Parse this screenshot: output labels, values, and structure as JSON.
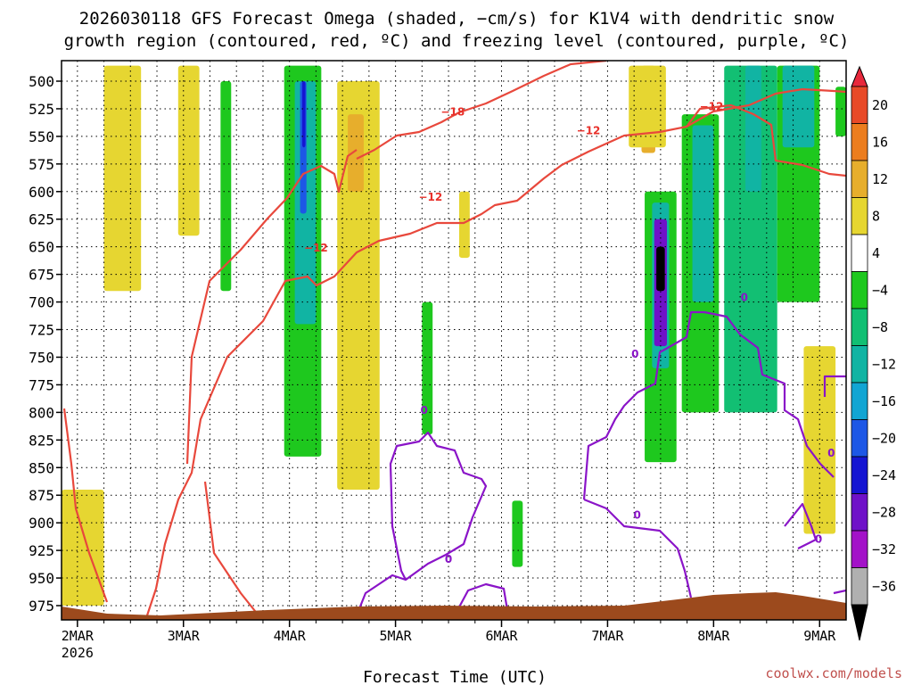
{
  "chart_data": {
    "type": "heatmap",
    "title_line1": "2026030118 GFS Forecast Omega (shaded, −cm/s) for K1V4 with dendritic snow",
    "title_line2": "growth region (contoured, red, ºC) and freezing level (contoured, purple, ºC)",
    "xlabel": "Forecast Time (UTC)",
    "credit": "coolwx.com/models",
    "x_ticks": [
      {
        "label": "2MAR",
        "sublabel": "2026",
        "day": 2
      },
      {
        "label": "3MAR",
        "day": 3
      },
      {
        "label": "4MAR",
        "day": 4
      },
      {
        "label": "5MAR",
        "day": 5
      },
      {
        "label": "6MAR",
        "day": 6
      },
      {
        "label": "7MAR",
        "day": 7
      },
      {
        "label": "8MAR",
        "day": 8
      },
      {
        "label": "9MAR",
        "day": 9
      }
    ],
    "xlim_days": [
      1.85,
      9.25
    ],
    "ylabel_unit": "hPa",
    "y_ticks": [
      "500",
      "525",
      "550",
      "575",
      "600",
      "625",
      "650",
      "675",
      "700",
      "725",
      "750",
      "775",
      "800",
      "825",
      "850",
      "875",
      "900",
      "925",
      "950",
      "975"
    ],
    "ylim_hpa": [
      484,
      990
    ],
    "colorbar": {
      "ticks": [
        "20",
        "16",
        "12",
        "8",
        "4",
        "−4",
        "−8",
        "−12",
        "−16",
        "−20",
        "−24",
        "−28",
        "−32",
        "−36"
      ],
      "colors": [
        "#e8283c",
        "#e84a28",
        "#ec7d1e",
        "#e7ae2c",
        "#e6d631",
        "#ffffff",
        "#1ec81e",
        "#12bf73",
        "#11b4a3",
        "#12a5d3",
        "#1d57e6",
        "#1515d2",
        "#6f12c8",
        "#a312c8",
        "#b0b0b0",
        "#000000"
      ]
    },
    "contours": {
      "dgz_red": {
        "color": "#e8483c",
        "levels": [
          "−12",
          "−18"
        ]
      },
      "freezing_purple": {
        "color": "#8a14c8",
        "levels": [
          "0"
        ]
      }
    },
    "contour_labels": [
      {
        "text": "−18",
        "day": 5.54,
        "hpa": 528,
        "kind": "red"
      },
      {
        "text": "−12",
        "day": 6.82,
        "hpa": 545,
        "kind": "red"
      },
      {
        "text": "−12",
        "day": 7.98,
        "hpa": 523,
        "kind": "red"
      },
      {
        "text": "−12",
        "day": 5.33,
        "hpa": 605,
        "kind": "red"
      },
      {
        "text": "−12",
        "day": 4.25,
        "hpa": 651,
        "kind": "red"
      },
      {
        "text": "0",
        "day": 5.27,
        "hpa": 798,
        "kind": "purple"
      },
      {
        "text": "0",
        "day": 5.5,
        "hpa": 933,
        "kind": "purple"
      },
      {
        "text": "0",
        "day": 7.26,
        "hpa": 747,
        "kind": "purple"
      },
      {
        "text": "0",
        "day": 7.28,
        "hpa": 893,
        "kind": "purple"
      },
      {
        "text": "0",
        "day": 8.29,
        "hpa": 696,
        "kind": "purple"
      },
      {
        "text": "0",
        "day": 9.11,
        "hpa": 837,
        "kind": "purple"
      },
      {
        "text": "0",
        "day": 8.99,
        "hpa": 915,
        "kind": "purple"
      }
    ],
    "omega_regions": [
      {
        "name": "yellow-band-2mar",
        "value": 5,
        "day0": 2.25,
        "day1": 2.6,
        "hpa0": 486,
        "hpa1": 690
      },
      {
        "name": "yellow-band-2mar-b",
        "value": 5,
        "day0": 2.95,
        "day1": 3.15,
        "hpa0": 486,
        "hpa1": 640
      },
      {
        "name": "yellow-lowlevel-2mar",
        "value": 6,
        "day0": 1.85,
        "day1": 2.25,
        "hpa0": 870,
        "hpa1": 975
      },
      {
        "name": "green-3mar",
        "value": -6,
        "day0": 3.35,
        "day1": 3.45,
        "hpa0": 500,
        "hpa1": 690
      },
      {
        "name": "green-4mar",
        "value": -8,
        "day0": 3.95,
        "day1": 4.3,
        "hpa0": 486,
        "hpa1": 840
      },
      {
        "name": "cyan-4mar",
        "value": -13,
        "day0": 4.05,
        "day1": 4.25,
        "hpa0": 500,
        "hpa1": 720
      },
      {
        "name": "blue-4mar",
        "value": -22,
        "day0": 4.1,
        "day1": 4.16,
        "hpa0": 500,
        "hpa1": 620
      },
      {
        "name": "purple-4mar",
        "value": -27,
        "day0": 4.12,
        "day1": 4.15,
        "hpa0": 500,
        "hpa1": 560
      },
      {
        "name": "yellow-4mar",
        "value": 5,
        "day0": 4.45,
        "day1": 4.85,
        "hpa0": 500,
        "hpa1": 870
      },
      {
        "name": "orange-4mar",
        "value": 9,
        "day0": 4.55,
        "day1": 4.7,
        "hpa0": 530,
        "hpa1": 600
      },
      {
        "name": "green-5mar",
        "value": -6,
        "day0": 5.25,
        "day1": 5.35,
        "hpa0": 700,
        "hpa1": 820
      },
      {
        "name": "yellow-5mar",
        "value": 5,
        "day0": 5.6,
        "day1": 5.7,
        "hpa0": 600,
        "hpa1": 660
      },
      {
        "name": "green-6mar",
        "value": -6,
        "day0": 6.1,
        "day1": 6.2,
        "hpa0": 880,
        "hpa1": 940
      },
      {
        "name": "orange-7mar",
        "value": 10,
        "day0": 7.32,
        "day1": 7.45,
        "hpa0": 486,
        "hpa1": 565
      },
      {
        "name": "yellow-7mar",
        "value": 5,
        "day0": 7.2,
        "day1": 7.55,
        "hpa0": 486,
        "hpa1": 560
      },
      {
        "name": "green-7mar",
        "value": -8,
        "day0": 7.35,
        "day1": 7.65,
        "hpa0": 600,
        "hpa1": 845
      },
      {
        "name": "cyan-7mar",
        "value": -14,
        "day0": 7.42,
        "day1": 7.58,
        "hpa0": 610,
        "hpa1": 760
      },
      {
        "name": "purple-7mar",
        "value": -29,
        "day0": 7.44,
        "day1": 7.56,
        "hpa0": 625,
        "hpa1": 740
      },
      {
        "name": "black-7mar",
        "value": -38,
        "day0": 7.46,
        "day1": 7.54,
        "hpa0": 650,
        "hpa1": 690
      },
      {
        "name": "green-8mar",
        "value": -8,
        "day0": 7.7,
        "day1": 8.05,
        "hpa0": 530,
        "hpa1": 800
      },
      {
        "name": "cyan-8mar",
        "value": -13,
        "day0": 7.8,
        "day1": 8.0,
        "hpa0": 540,
        "hpa1": 700
      },
      {
        "name": "green-8mar-b",
        "value": -9,
        "day0": 8.1,
        "day1": 8.6,
        "hpa0": 486,
        "hpa1": 800
      },
      {
        "name": "cyan-8mar-b",
        "value": -13,
        "day0": 8.3,
        "day1": 8.45,
        "hpa0": 486,
        "hpa1": 600
      },
      {
        "name": "green-9mar",
        "value": -8,
        "day0": 8.6,
        "day1": 9.0,
        "hpa0": 486,
        "hpa1": 700
      },
      {
        "name": "cyan-9mar",
        "value": -13,
        "day0": 8.65,
        "day1": 8.95,
        "hpa0": 486,
        "hpa1": 560
      },
      {
        "name": "green-9mar-top",
        "value": -7,
        "day0": 9.15,
        "day1": 9.25,
        "hpa0": 505,
        "hpa1": 550
      },
      {
        "name": "yellow-9mar",
        "value": 5,
        "day0": 8.85,
        "day1": 9.15,
        "hpa0": 740,
        "hpa1": 910
      }
    ]
  }
}
